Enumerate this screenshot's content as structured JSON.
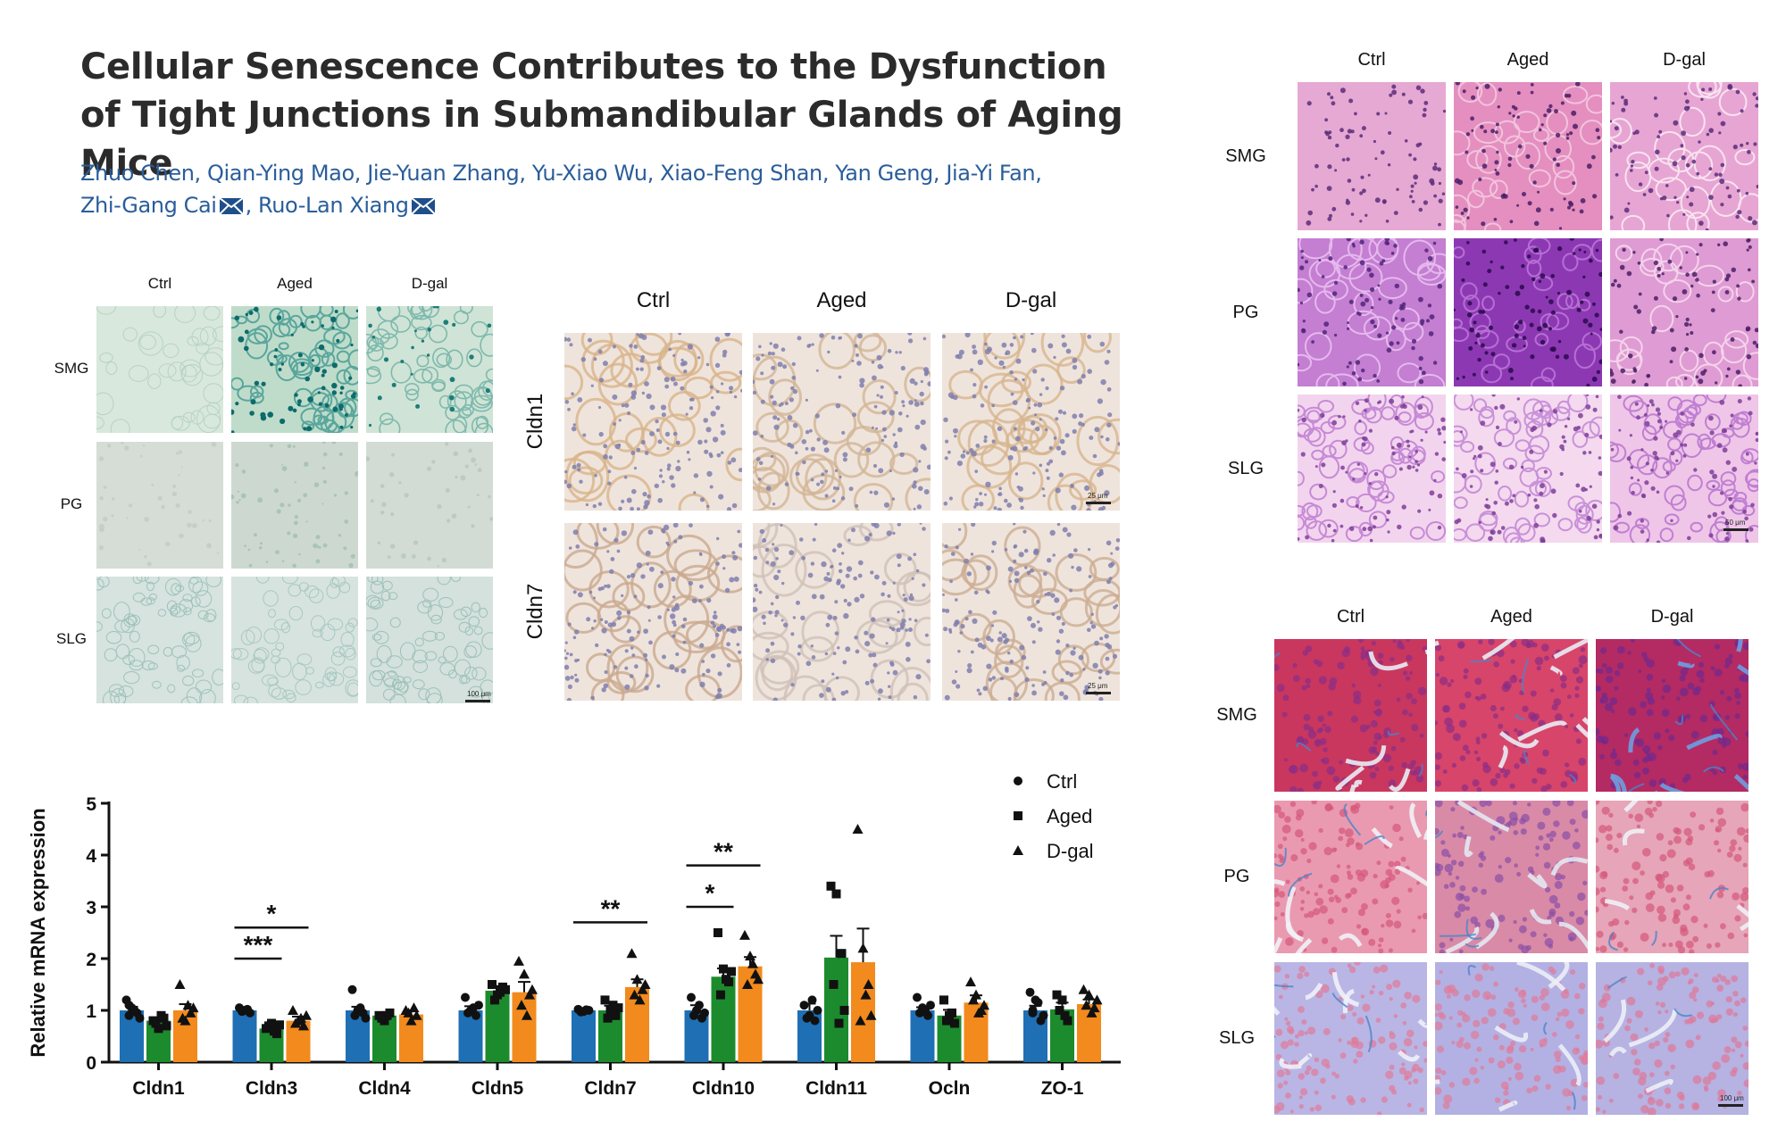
{
  "paper": {
    "title": "Cellular Senescence Contributes to the Dysfunction of Tight Junctions in Submandibular Glands of Aging Mice",
    "authors_line1": [
      "Zhuo Chen",
      "Qian-Ying Mao",
      "Jie-Yuan Zhang",
      "Yu-Xiao Wu",
      "Xiao-Feng Shan",
      "Yan Geng",
      "Jia-Yi Fan"
    ],
    "authors_line2": [
      "Zhi-Gang Cai",
      "Ruo-Lan Xiang"
    ],
    "mail_icon": "envelope-icon"
  },
  "panel_sa_bgal": {
    "columns": [
      "Ctrl",
      "Aged",
      "D-gal"
    ],
    "rows": [
      "SMG",
      "PG",
      "SLG"
    ],
    "scale_bar": "100 μm"
  },
  "panel_ihc": {
    "columns": [
      "Ctrl",
      "Aged",
      "D-gal"
    ],
    "rows": [
      "Cldn1",
      "Cldn7"
    ],
    "scale_bar": "25 μm"
  },
  "panel_he": {
    "columns": [
      "Ctrl",
      "Aged",
      "D-gal"
    ],
    "rows": [
      "SMG",
      "PG",
      "SLG"
    ],
    "scale_bar": "50 μm"
  },
  "panel_masson": {
    "columns": [
      "Ctrl",
      "Aged",
      "D-gal"
    ],
    "rows": [
      "SMG",
      "PG",
      "SLG"
    ],
    "scale_bar": "100 μm"
  },
  "colors": {
    "ctrl": "#1f6fb5",
    "aged": "#1c8b2d",
    "dgal": "#f28a1d",
    "author_link": "#2a5d9a"
  },
  "chart_data": {
    "type": "bar",
    "ylabel": "Relative mRNA expression",
    "ylim": [
      0,
      5
    ],
    "yticks": [
      "0",
      "1",
      "2",
      "3",
      "4",
      "5"
    ],
    "categories": [
      "Cldn1",
      "Cldn3",
      "Cldn4",
      "Cldn5",
      "Cldn7",
      "Cldn10",
      "Cldn11",
      "Ocln",
      "ZO-1"
    ],
    "series": [
      {
        "name": "Ctrl",
        "marker": "circle",
        "values": [
          1.0,
          1.0,
          1.0,
          1.0,
          1.0,
          1.0,
          1.0,
          1.0,
          1.0
        ],
        "errors": [
          0.07,
          0.04,
          0.07,
          0.08,
          0.02,
          0.1,
          0.13,
          0.06,
          0.09
        ]
      },
      {
        "name": "Aged",
        "marker": "square",
        "values": [
          0.8,
          0.65,
          0.9,
          1.38,
          1.0,
          1.65,
          2.02,
          0.9,
          1.02
        ],
        "errors": [
          0.06,
          0.05,
          0.04,
          0.09,
          0.09,
          0.16,
          0.42,
          0.11,
          0.13
        ]
      },
      {
        "name": "D-gal",
        "marker": "triangle",
        "values": [
          1.0,
          0.8,
          0.92,
          1.35,
          1.45,
          1.85,
          1.93,
          1.15,
          1.12
        ],
        "errors": [
          0.12,
          0.08,
          0.08,
          0.2,
          0.15,
          0.18,
          0.65,
          0.14,
          0.09
        ]
      }
    ],
    "points": [
      [
        [
          1.2,
          1.05,
          0.95,
          0.9,
          1.0,
          0.85,
          1.1
        ],
        [
          0.8,
          0.65,
          0.85,
          0.75,
          0.9,
          0.7
        ],
        [
          1.5,
          0.8,
          0.95,
          0.85,
          1.1,
          1.05
        ]
      ],
      [
        [
          1.05,
          1.0,
          0.95,
          0.98,
          1.02
        ],
        [
          0.65,
          0.75,
          0.55,
          0.7,
          0.6,
          0.72
        ],
        [
          1.0,
          0.8,
          0.7,
          0.75,
          0.85,
          0.9
        ]
      ],
      [
        [
          1.4,
          1.0,
          0.95,
          0.9,
          1.05,
          0.85
        ],
        [
          0.9,
          0.8,
          0.95,
          0.85,
          0.9
        ],
        [
          1.0,
          0.8,
          0.9,
          0.95,
          1.05
        ]
      ],
      [
        [
          1.25,
          1.0,
          0.9,
          0.95,
          1.05,
          1.1
        ],
        [
          1.5,
          1.3,
          1.45,
          1.2,
          1.35,
          1.4
        ],
        [
          1.95,
          1.7,
          1.3,
          1.1,
          0.9,
          1.4
        ]
      ],
      [
        [
          1.02,
          0.98,
          1.0,
          0.97,
          1.01
        ],
        [
          1.2,
          1.0,
          0.9,
          0.85,
          1.1,
          1.05
        ],
        [
          2.1,
          1.6,
          1.4,
          1.3,
          1.2,
          1.5
        ]
      ],
      [
        [
          1.25,
          1.0,
          0.85,
          0.9,
          1.1,
          0.95
        ],
        [
          2.5,
          1.8,
          1.55,
          1.3,
          1.6,
          1.75
        ],
        [
          2.45,
          2.05,
          1.7,
          1.5,
          1.9,
          1.6
        ]
      ],
      [
        [
          1.1,
          0.9,
          0.8,
          0.85,
          1.2,
          1.0
        ],
        [
          3.4,
          3.25,
          2.1,
          1.5,
          0.75,
          1.0
        ],
        [
          4.5,
          2.2,
          1.5,
          0.8,
          1.3,
          0.9
        ]
      ],
      [
        [
          1.25,
          1.05,
          0.9,
          0.95,
          1.0,
          1.1
        ],
        [
          1.2,
          0.9,
          0.75,
          0.8,
          0.95
        ],
        [
          1.55,
          1.3,
          1.0,
          1.2,
          0.95,
          1.1
        ]
      ],
      [
        [
          1.35,
          1.2,
          0.8,
          1.0,
          1.15,
          0.9,
          0.95
        ],
        [
          1.3,
          1.2,
          0.8,
          1.0,
          0.9
        ],
        [
          1.4,
          1.3,
          1.05,
          1.1,
          0.95,
          1.2
        ]
      ]
    ],
    "significance": [
      {
        "category": "Cldn3",
        "from": 0,
        "to": 1,
        "label": "***",
        "level": 2.0
      },
      {
        "category": "Cldn3",
        "from": 0,
        "to": 2,
        "label": "*",
        "level": 2.6
      },
      {
        "category": "Cldn7",
        "from": 0,
        "to": 2,
        "label": "**",
        "level": 2.7
      },
      {
        "category": "Cldn10",
        "from": 0,
        "to": 1,
        "label": "*",
        "level": 3.0
      },
      {
        "category": "Cldn10",
        "from": 0,
        "to": 2,
        "label": "**",
        "level": 3.8
      }
    ],
    "legend_position": "top-right"
  }
}
